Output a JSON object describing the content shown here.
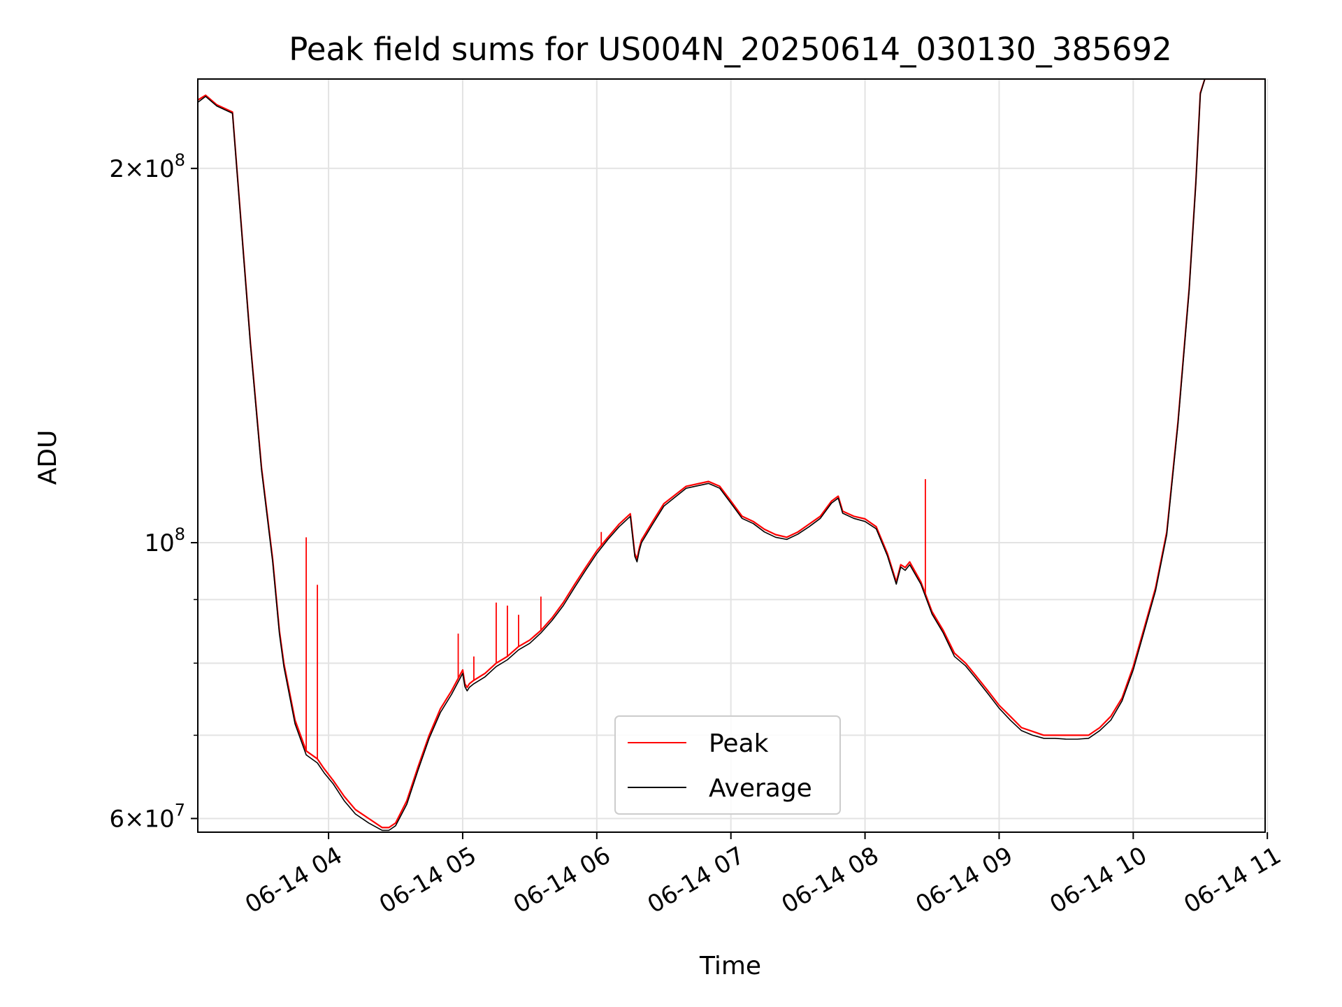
{
  "chart_data": {
    "type": "line",
    "title": "Peak field sums for US004N_20250614_030130_385692",
    "xlabel": "Time",
    "ylabel": "ADU",
    "y_scale": "log",
    "xlim": [
      "2025-06-14 03:01:30",
      "2025-06-14 10:59:00"
    ],
    "ylim": [
      58500000,
      236000000
    ],
    "grid": true,
    "legend_position": "lower-center",
    "x_ticks": [
      "06-14 04",
      "06-14 05",
      "06-14 06",
      "06-14 07",
      "06-14 08",
      "06-14 09",
      "06-14 10",
      "06-14 11"
    ],
    "y_major_ticks": [
      {
        "value": 60000000,
        "mantissa": "6",
        "exponent": "7"
      },
      {
        "value": 100000000,
        "mantissa": "",
        "exponent": "8"
      },
      {
        "value": 200000000,
        "mantissa": "2",
        "exponent": "8"
      }
    ],
    "y_minor_ticks": [
      70000000,
      80000000,
      90000000
    ],
    "series": [
      {
        "name": "Peak",
        "color": "#ff0000",
        "x": [
          "03:01:30",
          "03:05",
          "03:10",
          "03:17",
          "03:25",
          "03:30",
          "03:35",
          "03:38",
          "03:40",
          "03:45",
          "03:50",
          "03:55",
          "03:58",
          "04:02",
          "04:07",
          "04:12",
          "04:18",
          "04:24",
          "04:27",
          "04:30",
          "04:35",
          "04:40",
          "04:45",
          "04:50",
          "04:55",
          "05:00",
          "05:01",
          "05:02",
          "05:03",
          "05:05",
          "05:10",
          "05:15",
          "05:20",
          "05:25",
          "05:30",
          "05:35",
          "05:40",
          "05:45",
          "05:50",
          "05:55",
          "06:00",
          "06:05",
          "06:10",
          "06:15",
          "06:17",
          "06:18",
          "06:19",
          "06:20",
          "06:25",
          "06:30",
          "06:40",
          "06:50",
          "06:55",
          "07:00",
          "07:05",
          "07:10",
          "07:15",
          "07:20",
          "07:25",
          "07:30",
          "07:35",
          "07:40",
          "07:45",
          "07:48",
          "07:50",
          "07:55",
          "08:00",
          "08:05",
          "08:10",
          "08:14",
          "08:16",
          "08:18",
          "08:20",
          "08:25",
          "08:30",
          "08:35",
          "08:40",
          "08:45",
          "08:50",
          "08:55",
          "09:00",
          "09:05",
          "09:10",
          "09:15",
          "09:20",
          "09:25",
          "09:30",
          "09:35",
          "09:40",
          "09:45",
          "09:50",
          "09:55",
          "10:00",
          "10:05",
          "10:10",
          "10:15",
          "10:20",
          "10:25",
          "10:28",
          "10:30",
          "10:32",
          "10:35",
          "10:40",
          "10:45",
          "10:50",
          "10:55",
          "10:59"
        ],
        "y": [
          227000000,
          229000000,
          225000000,
          222000000,
          145000000,
          115000000,
          97000000,
          85000000,
          80000000,
          72000000,
          68000000,
          67000000,
          65800000,
          64400000,
          62500000,
          61000000,
          60000000,
          59000000,
          59000000,
          59500000,
          62000000,
          66000000,
          70000000,
          73500000,
          76000000,
          79000000,
          77000000,
          76500000,
          77000000,
          77500000,
          78500000,
          80000000,
          81000000,
          82500000,
          83500000,
          85000000,
          87000000,
          89500000,
          92500000,
          95500000,
          98500000,
          101000000,
          103500000,
          105500000,
          98000000,
          97000000,
          99000000,
          100500000,
          104000000,
          107500000,
          111000000,
          112000000,
          111000000,
          108000000,
          105000000,
          104000000,
          102500000,
          101500000,
          101000000,
          102000000,
          103500000,
          105000000,
          108000000,
          109000000,
          106000000,
          105000000,
          104500000,
          103000000,
          98000000,
          93000000,
          96000000,
          95500000,
          96500000,
          93000000,
          88000000,
          85000000,
          81500000,
          80000000,
          78000000,
          76000000,
          74000000,
          72500000,
          71000000,
          70500000,
          70000000,
          70000000,
          70000000,
          70000000,
          70000000,
          71000000,
          72500000,
          75000000,
          79500000,
          85500000,
          92000000,
          102000000,
          125000000,
          160000000,
          195000000,
          230000000,
          236000000,
          236000000,
          236000000,
          236000000,
          236000000,
          236000000,
          236000000
        ],
        "spikes": [
          {
            "x": "03:50",
            "y": 101000000
          },
          {
            "x": "03:55",
            "y": 92500000
          },
          {
            "x": "04:58",
            "y": 84500000
          },
          {
            "x": "05:05",
            "y": 81000000
          },
          {
            "x": "05:15",
            "y": 89500000
          },
          {
            "x": "05:20",
            "y": 89000000
          },
          {
            "x": "05:25",
            "y": 87500000
          },
          {
            "x": "05:35",
            "y": 90500000
          },
          {
            "x": "06:02",
            "y": 102000000
          },
          {
            "x": "08:27",
            "y": 112500000
          }
        ]
      },
      {
        "name": "Average",
        "color": "#000000",
        "x": [
          "03:01:30",
          "03:05",
          "03:10",
          "03:17",
          "03:25",
          "03:30",
          "03:35",
          "03:38",
          "03:40",
          "03:45",
          "03:50",
          "03:55",
          "03:58",
          "04:02",
          "04:07",
          "04:12",
          "04:18",
          "04:24",
          "04:27",
          "04:30",
          "04:35",
          "04:40",
          "04:45",
          "04:50",
          "04:55",
          "05:00",
          "05:01",
          "05:02",
          "05:03",
          "05:05",
          "05:10",
          "05:15",
          "05:20",
          "05:25",
          "05:30",
          "05:35",
          "05:40",
          "05:45",
          "05:50",
          "05:55",
          "06:00",
          "06:05",
          "06:10",
          "06:15",
          "06:17",
          "06:18",
          "06:19",
          "06:20",
          "06:25",
          "06:30",
          "06:40",
          "06:50",
          "06:55",
          "07:00",
          "07:05",
          "07:10",
          "07:15",
          "07:20",
          "07:25",
          "07:30",
          "07:35",
          "07:40",
          "07:45",
          "07:48",
          "07:50",
          "07:55",
          "08:00",
          "08:05",
          "08:10",
          "08:14",
          "08:16",
          "08:18",
          "08:20",
          "08:25",
          "08:30",
          "08:35",
          "08:40",
          "08:45",
          "08:50",
          "08:55",
          "09:00",
          "09:05",
          "09:10",
          "09:15",
          "09:20",
          "09:25",
          "09:30",
          "09:35",
          "09:40",
          "09:45",
          "09:50",
          "09:55",
          "10:00",
          "10:05",
          "10:10",
          "10:15",
          "10:20",
          "10:25",
          "10:28",
          "10:30",
          "10:32",
          "10:35",
          "10:40",
          "10:45",
          "10:50",
          "10:55",
          "10:59"
        ],
        "y": [
          226000000,
          228500000,
          224500000,
          221500000,
          144500000,
          114500000,
          96500000,
          84500000,
          79500000,
          71500000,
          67500000,
          66500000,
          65300000,
          64000000,
          62000000,
          60500000,
          59500000,
          58700000,
          58700000,
          59200000,
          61600000,
          65600000,
          69600000,
          73000000,
          75500000,
          78500000,
          76600000,
          76000000,
          76500000,
          77000000,
          78000000,
          79500000,
          80500000,
          82000000,
          83000000,
          84600000,
          86600000,
          89000000,
          92000000,
          95000000,
          98000000,
          100600000,
          103000000,
          105000000,
          97500000,
          96500000,
          98500000,
          100000000,
          103500000,
          107000000,
          110600000,
          111600000,
          110600000,
          107600000,
          104600000,
          103600000,
          102000000,
          101000000,
          100600000,
          101600000,
          103000000,
          104600000,
          107600000,
          108600000,
          105600000,
          104600000,
          104000000,
          102600000,
          97600000,
          92600000,
          95600000,
          95000000,
          96000000,
          92600000,
          87600000,
          84600000,
          81000000,
          79600000,
          77600000,
          75600000,
          73600000,
          72000000,
          70600000,
          70000000,
          69600000,
          69600000,
          69500000,
          69500000,
          69600000,
          70600000,
          72000000,
          74600000,
          79000000,
          85000000,
          91500000,
          101500000,
          124500000,
          159500000,
          194500000,
          229500000,
          236000000,
          236000000,
          236000000,
          236000000,
          236000000,
          236000000,
          236000000
        ]
      }
    ]
  }
}
